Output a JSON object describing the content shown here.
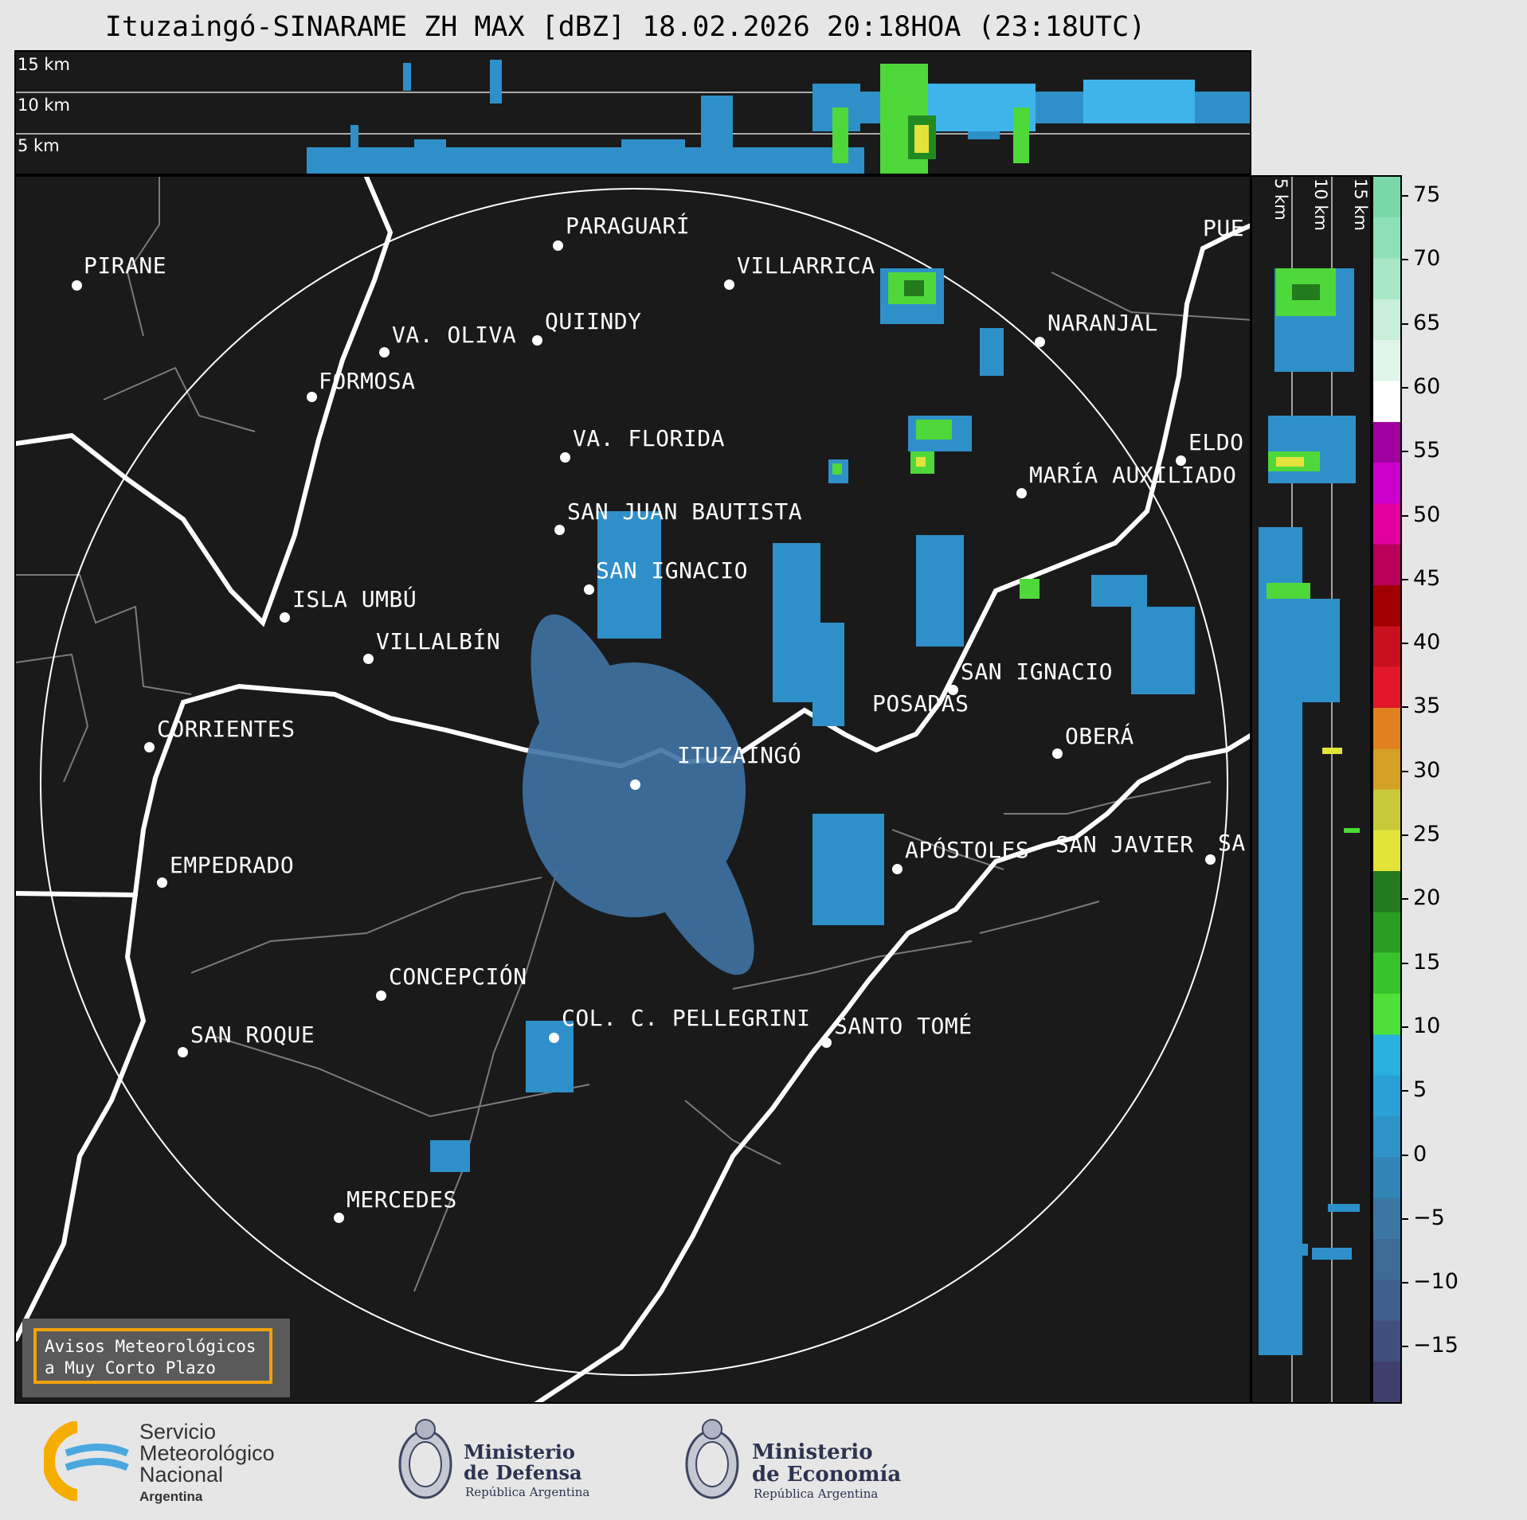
{
  "title": "Ituzaingó-SINARAME ZH MAX [dBZ] 18.02.2026 20:18HOA (23:18UTC)",
  "cross_section_top": {
    "labels": [
      "15 km",
      "10 km",
      "5 km"
    ]
  },
  "cross_section_right": {
    "labels": [
      "5 km",
      "10 km",
      "15 km"
    ]
  },
  "colorbar": {
    "ticks": [
      "75",
      "70",
      "65",
      "60",
      "55",
      "50",
      "45",
      "40",
      "35",
      "30",
      "25",
      "20",
      "15",
      "10",
      "5",
      "0",
      "−5",
      "−10",
      "−15"
    ],
    "colors": [
      "#3f3f6e",
      "#3f4f7e",
      "#3f5f8e",
      "#3d6b97",
      "#3a78a3",
      "#3285b7",
      "#2f93c8",
      "#2aa0d6",
      "#29b0df",
      "#4de03a",
      "#38c22c",
      "#2a9e22",
      "#237b1d",
      "#e3e33a",
      "#c9c93a",
      "#d4a025",
      "#e0801e",
      "#e0182a",
      "#c8101e",
      "#a00000",
      "#b8005a",
      "#e000a0",
      "#cc00cc",
      "#a000a0",
      "#ffffff",
      "#dff5ea",
      "#c7efd9",
      "#a8e8c7",
      "#8ee0b6",
      "#7ad8a8"
    ]
  },
  "cities": [
    {
      "name": "PIRANE"
    },
    {
      "name": "PARAGUARÍ"
    },
    {
      "name": "VILLARRICA"
    },
    {
      "name": "VA. OLIVA"
    },
    {
      "name": "QUIINDY"
    },
    {
      "name": "NARANJAL"
    },
    {
      "name": "FORMOSA"
    },
    {
      "name": "VA. FLORIDA"
    },
    {
      "name": "ELDO"
    },
    {
      "name": "MARÍA AUXILIADO"
    },
    {
      "name": "SAN JUAN BAUTISTA"
    },
    {
      "name": "SAN IGNACIO"
    },
    {
      "name": "ISLA UMBÚ"
    },
    {
      "name": "VILLALBÍN"
    },
    {
      "name": "SAN IGNACIO"
    },
    {
      "name": "POSADAS"
    },
    {
      "name": "CORRIENTES"
    },
    {
      "name": "ITUZAINGÓ"
    },
    {
      "name": "OBERÁ"
    },
    {
      "name": "APÓSTOLES"
    },
    {
      "name": "SAN JAVIER"
    },
    {
      "name": "SA"
    },
    {
      "name": "EMPEDRADO"
    },
    {
      "name": "CONCEPCIÓN"
    },
    {
      "name": "COL. C. PELLEGRINI"
    },
    {
      "name": "SANTO TOMÉ"
    },
    {
      "name": "SAN ROQUE"
    },
    {
      "name": "MERCEDES"
    },
    {
      "name": "PUE"
    }
  ],
  "warning": {
    "line1": "Avisos Meteorológicos",
    "line2": "a Muy Corto Plazo"
  },
  "logos": {
    "smn": {
      "line1": "Servicio",
      "line2": "Meteorológico",
      "line3": "Nacional",
      "line4": "Argentina"
    },
    "defensa": {
      "line1": "Ministerio",
      "line2": "de Defensa",
      "line3": "República Argentina"
    },
    "economia": {
      "line1": "Ministerio",
      "line2": "de Economía",
      "line3": "República Argentina"
    }
  }
}
